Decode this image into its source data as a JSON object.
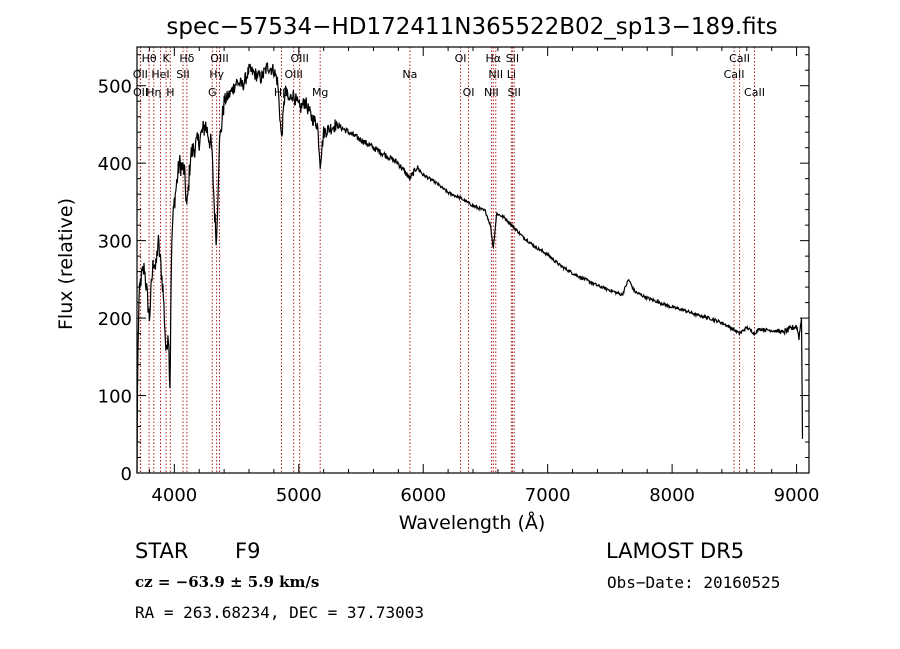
{
  "chart_data": {
    "type": "line",
    "title": "spec−57534−HD172411N365522B02_sp13−189.fits",
    "xlabel": "Wavelength (Å)",
    "ylabel": "Flux (relative)",
    "xlim": [
      3700,
      9100
    ],
    "ylim": [
      0,
      550
    ],
    "xticks": [
      4000,
      5000,
      6000,
      7000,
      8000,
      9000
    ],
    "xtick_labels": [
      "4000",
      "5000",
      "6000",
      "7000",
      "8000",
      "9000"
    ],
    "yticks": [
      0,
      100,
      200,
      300,
      400,
      500
    ],
    "ytick_labels": [
      "0",
      "100",
      "200",
      "300",
      "400",
      "500"
    ],
    "grid": false,
    "line_color": "#000000",
    "marker_color": "#b22222",
    "spectrum_anchors": {
      "x": [
        3700,
        3705,
        3715,
        3730,
        3760,
        3780,
        3800,
        3820,
        3835,
        3850,
        3870,
        3890,
        3910,
        3935,
        3950,
        3965,
        3975,
        3985,
        4000,
        4040,
        4080,
        4101,
        4130,
        4160,
        4200,
        4250,
        4300,
        4325,
        4340,
        4360,
        4400,
        4450,
        4500,
        4550,
        4600,
        4650,
        4700,
        4750,
        4800,
        4830,
        4861,
        4890,
        4920,
        4950,
        4980,
        5010,
        5050,
        5100,
        5150,
        5172,
        5200,
        5300,
        5400,
        5500,
        5600,
        5700,
        5800,
        5893,
        5950,
        6000,
        6100,
        6200,
        6300,
        6400,
        6500,
        6540,
        6563,
        6590,
        6650,
        6700,
        6800,
        6900,
        7000,
        7100,
        7200,
        7300,
        7400,
        7500,
        7600,
        7650,
        7700,
        7800,
        7900,
        8000,
        8100,
        8200,
        8300,
        8400,
        8498,
        8542,
        8600,
        8662,
        8700,
        8800,
        8900,
        9000,
        9020,
        9040,
        9050
      ],
      "y": [
        0,
        130,
        220,
        250,
        265,
        230,
        200,
        250,
        280,
        260,
        300,
        270,
        235,
        150,
        190,
        110,
        260,
        320,
        350,
        400,
        390,
        340,
        410,
        420,
        430,
        450,
        420,
        330,
        300,
        420,
        480,
        490,
        505,
        500,
        520,
        515,
        510,
        525,
        520,
        505,
        430,
        495,
        480,
        490,
        480,
        470,
        480,
        460,
        450,
        400,
        440,
        450,
        440,
        430,
        420,
        410,
        400,
        380,
        395,
        385,
        375,
        362,
        355,
        345,
        338,
        320,
        290,
        335,
        330,
        322,
        305,
        292,
        282,
        268,
        258,
        250,
        242,
        236,
        230,
        250,
        234,
        226,
        220,
        214,
        210,
        204,
        200,
        194,
        185,
        180,
        188,
        180,
        186,
        184,
        182,
        190,
        175,
        200,
        5
      ]
    },
    "line_markers": [
      {
        "label": "Hθ",
        "x": 3797,
        "row": 1
      },
      {
        "label": "K",
        "x": 3934,
        "row": 1
      },
      {
        "label": "Hδ",
        "x": 4101,
        "row": 1
      },
      {
        "label": "OIII",
        "x": 4363,
        "row": 1
      },
      {
        "label": "OIII",
        "x": 5007,
        "row": 1
      },
      {
        "label": "OI",
        "x": 6300,
        "row": 1
      },
      {
        "label": "Hα",
        "x": 6563,
        "row": 1
      },
      {
        "label": "SII",
        "x": 6717,
        "row": 1
      },
      {
        "label": "CaII",
        "x": 8542,
        "row": 1
      },
      {
        "label": "OII",
        "x": 3727,
        "row": 2
      },
      {
        "label": "HeI",
        "x": 3889,
        "row": 2
      },
      {
        "label": "SII",
        "x": 4070,
        "row": 2
      },
      {
        "label": "Hγ",
        "x": 4340,
        "row": 2
      },
      {
        "label": "OIII",
        "x": 4959,
        "row": 2
      },
      {
        "label": "Na",
        "x": 5893,
        "row": 2
      },
      {
        "label": "NII",
        "x": 6583,
        "row": 2
      },
      {
        "label": "Li",
        "x": 6708,
        "row": 2
      },
      {
        "label": "CaII",
        "x": 8498,
        "row": 2
      },
      {
        "label": "OII",
        "x": 3729,
        "row": 3
      },
      {
        "label": "Hη",
        "x": 3835,
        "row": 3
      },
      {
        "label": "H",
        "x": 3968,
        "row": 3
      },
      {
        "label": "G",
        "x": 4305,
        "row": 3
      },
      {
        "label": "Hβ",
        "x": 4861,
        "row": 3
      },
      {
        "label": "Mg",
        "x": 5172,
        "row": 3
      },
      {
        "label": "OI",
        "x": 6364,
        "row": 3
      },
      {
        "label": "NII",
        "x": 6548,
        "row": 3
      },
      {
        "label": "SII",
        "x": 6731,
        "row": 3
      },
      {
        "label": "CaII",
        "x": 8662,
        "row": 3
      }
    ]
  },
  "info": {
    "object_type": "STAR",
    "subclass": "F9",
    "survey": "LAMOST DR5",
    "cz": "cz = −63.9 ± 5.9 km/s",
    "obs_date": "Obs−Date: 20160525",
    "coords": "RA = 263.68234, DEC =  37.73003"
  }
}
